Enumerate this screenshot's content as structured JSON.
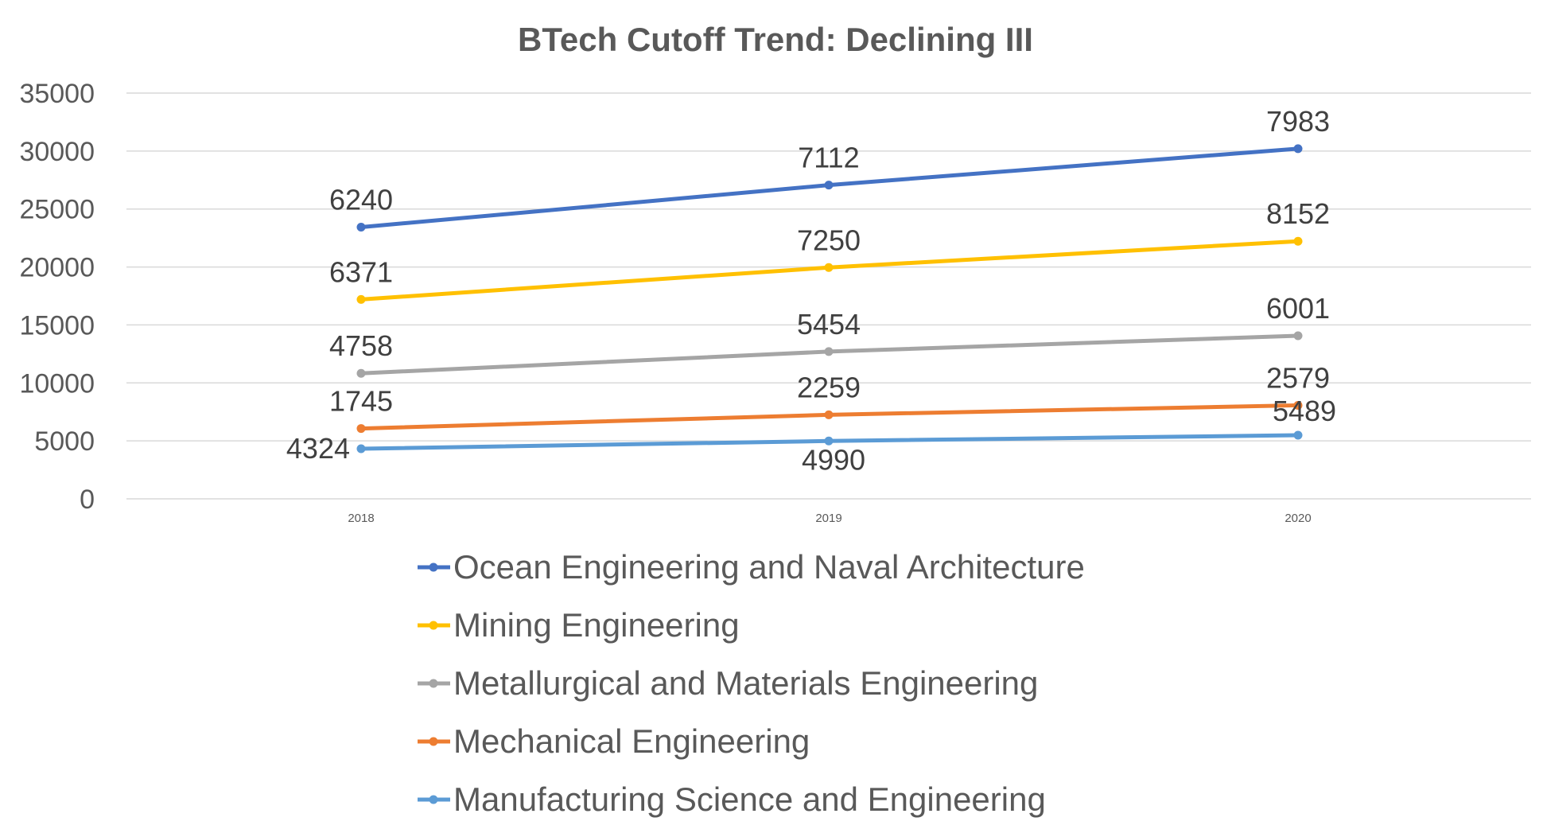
{
  "chart_data": {
    "type": "line",
    "stacked": true,
    "title": "BTech Cutoff Trend: Declining III",
    "xlabel": "",
    "ylabel": "",
    "categories": [
      "2018",
      "2019",
      "2020"
    ],
    "ylim": [
      0,
      35000
    ],
    "yticks": [
      "0",
      "5000",
      "10000",
      "15000",
      "20000",
      "25000",
      "30000",
      "35000"
    ],
    "grid": true,
    "legend_position": "bottom",
    "series": [
      {
        "name": "Manufacturing Science and Engineering",
        "color": "#5B9BD5",
        "values": [
          4324,
          4990,
          5489
        ]
      },
      {
        "name": "Mechanical Engineering",
        "color": "#ED7D31",
        "values": [
          1745,
          2259,
          2579
        ]
      },
      {
        "name": "Metallurgical and Materials Engineering",
        "color": "#A5A5A5",
        "values": [
          4758,
          5454,
          6001
        ]
      },
      {
        "name": "Mining Engineering",
        "color": "#FFC000",
        "values": [
          6371,
          7250,
          8152
        ]
      },
      {
        "name": "Ocean Engineering and Naval Architecture",
        "color": "#4472C4",
        "values": [
          6240,
          7112,
          7983
        ]
      }
    ],
    "legend_order": [
      4,
      3,
      2,
      1,
      0
    ]
  }
}
